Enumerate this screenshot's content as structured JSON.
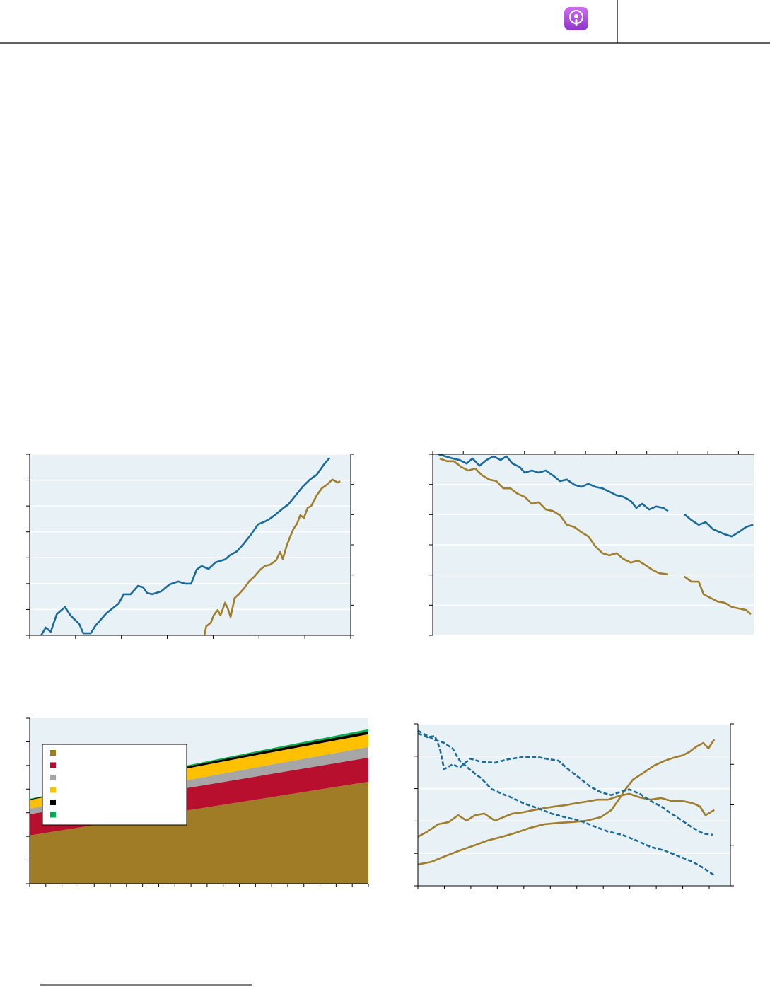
{
  "chart_data": [
    {
      "type": "line",
      "plot_background": "#e8f1f6",
      "grid": true,
      "xlim": [
        0,
        7
      ],
      "xticks": [
        0,
        1,
        2,
        3,
        4,
        5,
        6,
        7
      ],
      "ylim": [
        0,
        7
      ],
      "yticks": [
        0,
        1,
        2,
        3,
        4,
        5,
        6,
        7
      ],
      "y2lim": [
        0,
        6
      ],
      "y2ticks": [
        0,
        1,
        2,
        3,
        4,
        5,
        6
      ],
      "series": [
        {
          "color": "#1a6a9a",
          "x": [
            0.25,
            0.35,
            0.46,
            0.59,
            0.77,
            0.89,
            1.08,
            1.17,
            1.33,
            1.43,
            1.67,
            1.94,
            2.05,
            2.2,
            2.36,
            2.47,
            2.56,
            2.67,
            2.87,
            3.05,
            3.24,
            3.39,
            3.52,
            3.64,
            3.75,
            3.9,
            4.05,
            4.26,
            4.36,
            4.52,
            4.67,
            4.83,
            4.98,
            5.13,
            5.24,
            5.37,
            5.53,
            5.64,
            5.8,
            5.95,
            6.11,
            6.26,
            6.41,
            6.54
          ],
          "values": [
            0,
            0.3,
            0.14,
            0.82,
            1.09,
            0.77,
            0.44,
            0.08,
            0.08,
            0.36,
            0.85,
            1.23,
            1.59,
            1.59,
            1.91,
            1.86,
            1.64,
            1.59,
            1.7,
            1.97,
            2.08,
            2.0,
            2.0,
            2.54,
            2.68,
            2.57,
            2.82,
            2.93,
            3.09,
            3.25,
            3.55,
            3.91,
            4.29,
            4.4,
            4.51,
            4.68,
            4.92,
            5.06,
            5.41,
            5.74,
            6.02,
            6.21,
            6.59,
            6.86
          ]
        },
        {
          "color": "#a07e2c",
          "axis": "y2",
          "x": [
            3.81,
            3.85,
            3.95,
            4.01,
            4.1,
            4.16,
            4.26,
            4.32,
            4.38,
            4.47,
            4.56,
            4.67,
            4.78,
            4.9,
            5.03,
            5.13,
            5.24,
            5.37,
            5.46,
            5.52,
            5.6,
            5.67,
            5.75,
            5.83,
            5.9,
            5.98,
            6.06,
            6.14,
            6.26,
            6.37,
            6.48,
            6.6,
            6.72,
            6.77
          ],
          "values": [
            0,
            0.3,
            0.42,
            0.66,
            0.84,
            0.66,
            1.08,
            0.89,
            0.61,
            1.24,
            1.36,
            1.55,
            1.78,
            1.95,
            2.18,
            2.3,
            2.34,
            2.48,
            2.76,
            2.53,
            2.95,
            3.23,
            3.52,
            3.7,
            3.98,
            3.89,
            4.22,
            4.29,
            4.64,
            4.87,
            4.99,
            5.16,
            5.06,
            5.11
          ]
        }
      ]
    },
    {
      "type": "line",
      "plot_background": "#e8f1f6",
      "grid": true,
      "xtick_side": "top",
      "xlim": [
        0,
        10.5
      ],
      "xticks": [
        0,
        1,
        2,
        3,
        4,
        5,
        6,
        7,
        8,
        9,
        10
      ],
      "ylim": [
        0,
        6
      ],
      "yticks": [
        0,
        1,
        2,
        3,
        4,
        5,
        6
      ],
      "series": [
        {
          "color": "#1a6a9a",
          "x": [
            0.19,
            0.42,
            0.65,
            0.88,
            1.11,
            1.3,
            1.53,
            1.76,
            1.99,
            2.22,
            2.41,
            2.61,
            2.84,
            3.01,
            3.24,
            3.47,
            3.7,
            3.93,
            4.16,
            4.39,
            4.63,
            4.86,
            5.09,
            5.32,
            5.55,
            5.78,
            6.01,
            6.24,
            6.48,
            6.66,
            6.85,
            7.08,
            7.31,
            7.54,
            7.7,
            7.97,
            8.23,
            8.46,
            8.7,
            8.93,
            9.16,
            9.39,
            9.55,
            9.78,
            10.01,
            10.25,
            10.48
          ],
          "values": [
            6.0,
            5.93,
            5.86,
            5.81,
            5.69,
            5.86,
            5.62,
            5.81,
            5.93,
            5.81,
            5.93,
            5.69,
            5.58,
            5.39,
            5.46,
            5.39,
            5.46,
            5.3,
            5.11,
            5.16,
            4.99,
            4.92,
            5.02,
            4.92,
            4.87,
            4.76,
            4.64,
            4.59,
            4.45,
            4.22,
            4.36,
            4.17,
            4.27,
            4.22,
            4.12,
            null,
            4.01,
            3.82,
            3.66,
            3.75,
            3.52,
            3.42,
            3.35,
            3.28,
            3.42,
            3.59,
            3.66
          ]
        },
        {
          "color": "#a07e2c",
          "x": [
            0.23,
            0.46,
            0.69,
            0.93,
            1.16,
            1.39,
            1.62,
            1.85,
            2.08,
            2.31,
            2.54,
            2.78,
            3.01,
            3.24,
            3.47,
            3.7,
            3.93,
            4.16,
            4.39,
            4.63,
            4.86,
            5.09,
            5.32,
            5.55,
            5.78,
            6.01,
            6.24,
            6.48,
            6.71,
            6.94,
            7.17,
            7.4,
            7.7,
            7.97,
            8.23,
            8.46,
            8.7,
            8.86,
            9.09,
            9.32,
            9.55,
            9.78,
            10.01,
            10.25,
            10.41
          ],
          "values": [
            5.86,
            5.77,
            5.77,
            5.58,
            5.46,
            5.53,
            5.3,
            5.16,
            5.11,
            4.87,
            4.87,
            4.69,
            4.59,
            4.36,
            4.41,
            4.17,
            4.12,
            3.98,
            3.66,
            3.59,
            3.42,
            3.28,
            2.95,
            2.72,
            2.65,
            2.72,
            2.53,
            2.41,
            2.48,
            2.34,
            2.18,
            2.06,
            2.02,
            null,
            1.95,
            1.78,
            1.78,
            1.36,
            1.24,
            1.12,
            1.08,
            0.94,
            0.89,
            0.84,
            0.7
          ]
        }
      ]
    },
    {
      "type": "area",
      "plot_background": "#e8f1f6",
      "grid": false,
      "legend": "upper left",
      "xlim": [
        0,
        21
      ],
      "xticks": [
        0,
        1,
        2,
        3,
        4,
        5,
        6,
        7,
        8,
        9,
        10,
        11,
        12,
        13,
        14,
        15,
        16,
        17,
        18,
        19,
        20,
        21
      ],
      "ylim": [
        0,
        7
      ],
      "yticks": [
        0,
        1,
        2,
        3,
        4,
        5,
        6,
        7
      ],
      "x": [
        0,
        7,
        14,
        21
      ],
      "series": [
        {
          "color": "#a07c27",
          "values": [
            2.04,
            2.8,
            3.55,
            4.31
          ]
        },
        {
          "color": "#b80f2e",
          "values": [
            0.9,
            0.93,
            0.98,
            1.02
          ]
        },
        {
          "color": "#a6a6a6",
          "values": [
            0.24,
            0.3,
            0.38,
            0.45
          ]
        },
        {
          "color": "#ffc000",
          "values": [
            0.36,
            0.48,
            0.52,
            0.54
          ]
        },
        {
          "color": "#000000",
          "values": [
            0.03,
            0.07,
            0.1,
            0.12
          ]
        },
        {
          "color": "#00b050",
          "values": [
            0.02,
            0.04,
            0.06,
            0.09
          ]
        }
      ]
    },
    {
      "type": "line",
      "plot_background": "#e8f1f6",
      "grid": true,
      "xlim": [
        0,
        11.8
      ],
      "xticks": [
        0,
        1,
        2,
        3,
        4,
        5,
        6,
        7,
        8,
        9,
        10,
        11
      ],
      "ylim": [
        0,
        5
      ],
      "yticks": [
        0,
        1,
        2,
        3,
        4,
        5
      ],
      "y2lim": [
        0,
        4
      ],
      "y2ticks": [
        0,
        1,
        2,
        3,
        4
      ],
      "series": [
        {
          "color": "#a07e2c",
          "x": [
            0,
            0.37,
            0.77,
            1.17,
            1.52,
            1.84,
            2.16,
            2.51,
            2.91,
            3.23,
            3.58,
            3.98,
            4.38,
            4.78,
            5.18,
            5.58,
            5.98,
            6.38,
            6.78,
            7.18,
            7.58,
            7.98,
            8.38,
            8.78,
            9.18,
            9.58,
            9.98,
            10.38,
            10.65,
            10.86,
            11.05,
            11.19
          ],
          "values": [
            1.51,
            1.68,
            1.9,
            1.97,
            2.18,
            2.01,
            2.18,
            2.23,
            2.01,
            2.12,
            2.23,
            2.27,
            2.34,
            2.4,
            2.45,
            2.49,
            2.55,
            2.6,
            2.66,
            2.66,
            2.77,
            2.84,
            2.73,
            2.66,
            2.71,
            2.62,
            2.62,
            2.55,
            2.45,
            2.18,
            2.27,
            2.34
          ]
        },
        {
          "color": "#a07e2c",
          "x": [
            0,
            0.51,
            1.04,
            1.58,
            2.11,
            2.64,
            3.18,
            3.71,
            4.24,
            4.78,
            5.31,
            5.85,
            6.38,
            6.91,
            7.31,
            7.58,
            7.85,
            8.12,
            8.52,
            8.92,
            9.32,
            9.72,
            9.98,
            10.25,
            10.52,
            10.78,
            10.97,
            11.19
          ],
          "values": [
            0.66,
            0.74,
            0.92,
            1.09,
            1.24,
            1.4,
            1.51,
            1.64,
            1.79,
            1.9,
            1.94,
            1.97,
            2.01,
            2.12,
            2.34,
            2.66,
            2.99,
            3.28,
            3.49,
            3.71,
            3.86,
            3.97,
            4.02,
            4.13,
            4.3,
            4.41,
            4.24,
            4.52
          ]
        },
        {
          "color": "#1a6a9a",
          "axis": "y2",
          "dash": true,
          "x": [
            0,
            0.37,
            0.64,
            0.83,
            0.99,
            1.31,
            1.58,
            1.98,
            2.38,
            2.91,
            3.44,
            3.98,
            4.51,
            4.91,
            5.31,
            5.71,
            6.11,
            6.51,
            6.91,
            7.31,
            7.71,
            7.98,
            8.38,
            8.78,
            9.18,
            9.58,
            9.98,
            10.38,
            10.78,
            11.13
          ],
          "values": [
            3.76,
            3.67,
            3.7,
            3.39,
            2.88,
            3.0,
            2.92,
            3.14,
            3.06,
            3.04,
            3.13,
            3.18,
            3.18,
            3.13,
            3.09,
            2.86,
            2.66,
            2.45,
            2.31,
            2.24,
            2.34,
            2.38,
            2.27,
            2.1,
            1.96,
            1.78,
            1.61,
            1.43,
            1.29,
            1.26
          ]
        },
        {
          "color": "#1a6a9a",
          "axis": "y2",
          "dash": true,
          "x": [
            0,
            0.37,
            0.64,
            0.99,
            1.31,
            1.58,
            1.98,
            2.38,
            2.78,
            3.18,
            3.58,
            3.98,
            4.51,
            5.05,
            5.58,
            6.11,
            6.65,
            7.18,
            7.71,
            8.25,
            8.78,
            9.32,
            9.85,
            10.38,
            10.78,
            11.19
          ],
          "values": [
            3.83,
            3.7,
            3.6,
            3.53,
            3.39,
            3.09,
            2.86,
            2.66,
            2.39,
            2.27,
            2.17,
            2.04,
            1.92,
            1.78,
            1.69,
            1.61,
            1.47,
            1.34,
            1.26,
            1.12,
            0.96,
            0.87,
            0.73,
            0.59,
            0.44,
            0.26
          ]
        }
      ]
    }
  ]
}
